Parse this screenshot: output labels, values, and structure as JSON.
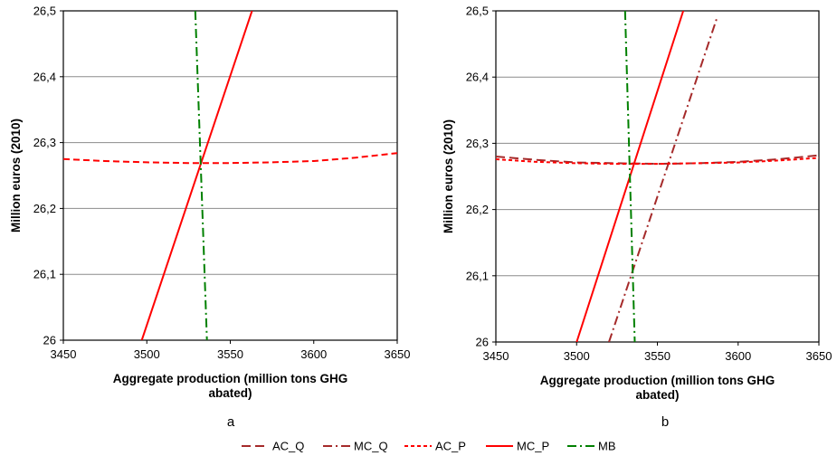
{
  "figure": {
    "legend": [
      {
        "label": "AC_Q",
        "color": "#a52a2a",
        "dash": "10,5"
      },
      {
        "label": "MC_Q",
        "color": "#a52a2a",
        "dash": "10,4,2,4"
      },
      {
        "label": "AC_P",
        "color": "#ff0000",
        "dash": "4,3"
      },
      {
        "label": "MC_P",
        "color": "#ff0000",
        "dash": ""
      },
      {
        "label": "MB",
        "color": "#008000",
        "dash": "10,4,2,4"
      }
    ]
  },
  "chart_data": [
    {
      "type": "line",
      "panel_label": "a",
      "xlabel": [
        "Aggregate production (million tons GHG",
        "abated)"
      ],
      "ylabel": "Million euros (2010)",
      "xlim": [
        3450,
        3650
      ],
      "ylim": [
        26,
        26.5
      ],
      "x_ticks": [
        "3450",
        "3500",
        "3550",
        "3600",
        "3650"
      ],
      "y_ticks": [
        "26",
        "26,1",
        "26,2",
        "26,3",
        "26,4",
        "26,5"
      ],
      "grid": "horizontal",
      "series": [
        {
          "name": "AC_P",
          "color": "#ff0000",
          "dash": "7,4",
          "x": [
            3450,
            3475,
            3500,
            3525,
            3550,
            3575,
            3600,
            3625,
            3650
          ],
          "y": [
            26.275,
            26.272,
            26.27,
            26.269,
            26.269,
            26.27,
            26.272,
            26.277,
            26.284
          ]
        },
        {
          "name": "MC_P",
          "color": "#ff0000",
          "dash": "",
          "x": [
            3497,
            3563
          ],
          "y": [
            26.0,
            26.5
          ]
        },
        {
          "name": "MB",
          "color": "#008000",
          "dash": "10,4,2,4",
          "x": [
            3529,
            3536
          ],
          "y": [
            26.5,
            26.0
          ]
        }
      ]
    },
    {
      "type": "line",
      "panel_label": "b",
      "xlabel": [
        "Aggregate production (million tons GHG",
        "abated)"
      ],
      "ylabel": "Million euros (2010)",
      "xlim": [
        3450,
        3650
      ],
      "ylim": [
        26,
        26.5
      ],
      "x_ticks": [
        "3450",
        "3500",
        "3550",
        "3600",
        "3650"
      ],
      "y_ticks": [
        "26",
        "26,1",
        "26,2",
        "26,3",
        "26,4",
        "26,5"
      ],
      "grid": "horizontal",
      "series": [
        {
          "name": "AC_Q",
          "color": "#a52a2a",
          "dash": "10,5",
          "x": [
            3450,
            3475,
            3500,
            3525,
            3550,
            3575,
            3600,
            3625,
            3650
          ],
          "y": [
            26.28,
            26.275,
            26.271,
            26.27,
            26.269,
            26.27,
            26.272,
            26.276,
            26.282
          ]
        },
        {
          "name": "MC_Q",
          "color": "#a52a2a",
          "dash": "10,4,2,4",
          "x": [
            3520,
            3587
          ],
          "y": [
            26.0,
            26.49
          ]
        },
        {
          "name": "AC_P",
          "color": "#ff0000",
          "dash": "4,3",
          "x": [
            3450,
            3475,
            3500,
            3525,
            3550,
            3575,
            3600,
            3625,
            3650
          ],
          "y": [
            26.276,
            26.272,
            26.27,
            26.269,
            26.269,
            26.27,
            26.271,
            26.274,
            26.278
          ]
        },
        {
          "name": "MC_P",
          "color": "#ff0000",
          "dash": "",
          "x": [
            3500,
            3566
          ],
          "y": [
            26.0,
            26.5
          ]
        },
        {
          "name": "MB",
          "color": "#008000",
          "dash": "10,4,2,4",
          "x": [
            3530,
            3536
          ],
          "y": [
            26.5,
            26.0
          ]
        }
      ]
    }
  ]
}
